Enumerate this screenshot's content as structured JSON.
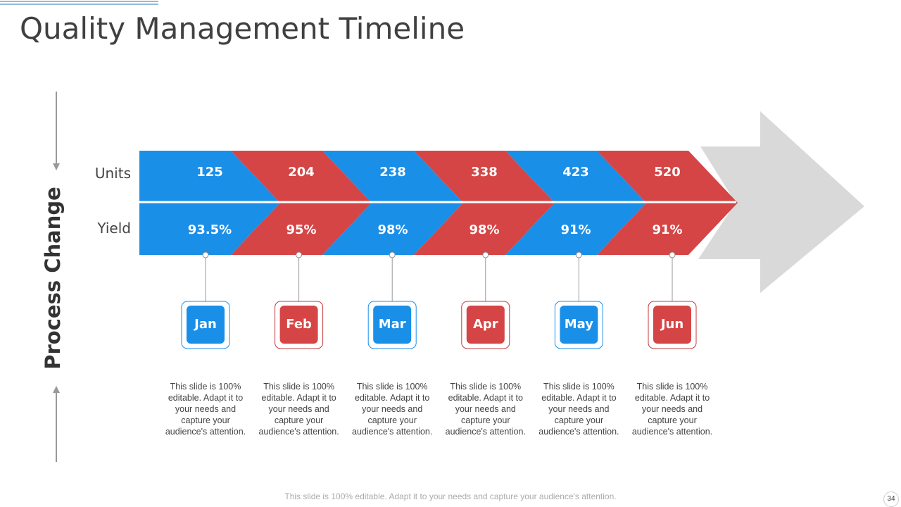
{
  "title": "Quality Management Timeline",
  "side_label": "Process Change",
  "row_labels": [
    "Units",
    "Yield"
  ],
  "months": [
    {
      "name": "Jan",
      "units": "125",
      "yield": "93.5%",
      "description": "This slide is 100% editable. Adapt it to your needs and capture your audience's attention."
    },
    {
      "name": "Feb",
      "units": "204",
      "yield": "95%",
      "description": "This slide is 100% editable. Adapt it to your needs and capture your audience's attention."
    },
    {
      "name": "Mar",
      "units": "238",
      "yield": "98%",
      "description": "This slide is 100% editable. Adapt it to your needs and capture your audience's attention."
    },
    {
      "name": "Apr",
      "units": "338",
      "yield": "98%",
      "description": "This slide is 100% editable. Adapt it to your needs and capture your audience's attention."
    },
    {
      "name": "May",
      "units": "423",
      "yield": "91%",
      "description": "This slide is 100% editable. Adapt it to your needs and capture your audience's attention."
    },
    {
      "name": "Jun",
      "units": "520",
      "yield": "91%",
      "description": "This slide is 100% editable. Adapt it to your needs and capture your audience's attention."
    }
  ],
  "footer": "This slide is 100% editable. Adapt it to your needs and capture your audience's attention.",
  "page_number": "34"
}
